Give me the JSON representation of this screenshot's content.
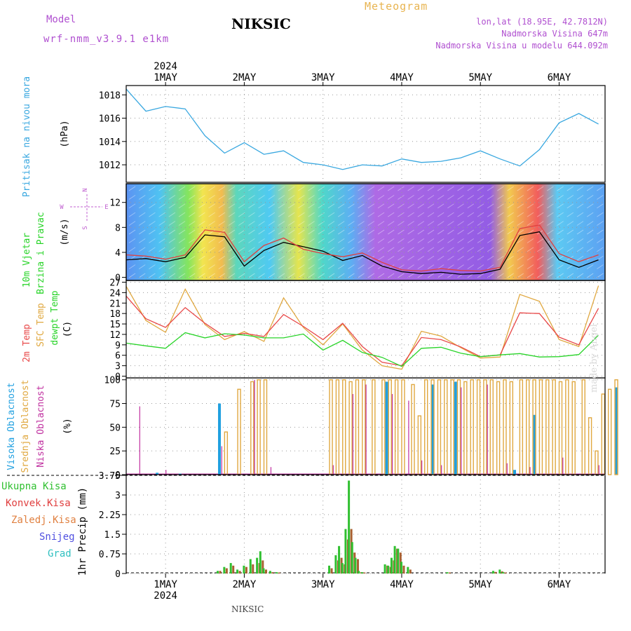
{
  "header": {
    "title": "NIKSIC",
    "meteogram_label": "Meteogram",
    "model_label": "Model",
    "model_name": "wrf-nmm_v3.9.1 e1km",
    "coords": "lon,lat (18.95E, 42.7812N)",
    "elevation": "Nadmorska Visina 647m",
    "model_elevation": "Nadmorska Visina u modelu 644.092m"
  },
  "footer": {
    "station": "NIKSIC",
    "watermark": "made by Angel"
  },
  "colors": {
    "pressure": "#3aa8e0",
    "temp2m": "#e84848",
    "sfc_temp": "#e0a840",
    "dewpoint": "#28d428",
    "cloud_high": "#20a0e0",
    "cloud_mid": "#e0a840",
    "cloud_low": "#c030a0",
    "precip_total": "#30c030",
    "precip_conv": "#e04040",
    "precip_frozen": "#e08040",
    "snow": "#5050e0",
    "hail": "#30c0c0"
  },
  "chart_data": [
    {
      "type": "line",
      "panel": "pressure",
      "ylabel_colored": "Pritisak na nivou mora",
      "ylabel_unit": "(hPa)",
      "yticks": [
        "1012",
        "1014",
        "1016",
        "1018"
      ],
      "ylim": [
        1010.5,
        1018.8
      ],
      "x_hours": [
        0,
        6,
        12,
        18,
        24,
        30,
        36,
        42,
        48,
        54,
        60,
        66,
        72,
        78,
        84,
        90,
        96,
        102,
        108,
        114,
        120,
        126,
        132,
        138,
        144
      ],
      "series": [
        {
          "values": [
            1018.5,
            1016.6,
            1017.0,
            1016.8,
            1014.5,
            1013.0,
            1013.9,
            1012.9,
            1013.2,
            1012.2,
            1012.0,
            1011.6,
            1012.0,
            1011.9,
            1012.5,
            1012.2,
            1012.3,
            1012.6,
            1013.2,
            1012.5,
            1011.9,
            1013.3,
            1015.6,
            1016.4,
            1015.5
          ]
        }
      ],
      "grid": true
    },
    {
      "type": "line",
      "panel": "wind",
      "ylabel_colored_1": "10m Vjetar",
      "ylabel_colored_2": "Brzina i Pravac",
      "ylabel_unit": "(m/s)",
      "compass": {
        "n": "N",
        "s": "S",
        "e": "E",
        "w": "W"
      },
      "yticks": [
        "0",
        "4",
        "8",
        "12"
      ],
      "ylim": [
        -0.5,
        15
      ],
      "x_hours": [
        0,
        6,
        12,
        18,
        24,
        30,
        36,
        42,
        48,
        54,
        60,
        66,
        72,
        78,
        84,
        90,
        96,
        102,
        108,
        114,
        120,
        126,
        132,
        138,
        144
      ],
      "series": [
        {
          "values": [
            2.8,
            3.0,
            2.5,
            3.2,
            6.8,
            6.5,
            1.8,
            4.3,
            5.6,
            4.9,
            4.2,
            2.7,
            3.5,
            1.8,
            0.9,
            0.6,
            0.8,
            0.5,
            0.6,
            1.3,
            6.7,
            7.3,
            2.8,
            1.6,
            2.8
          ]
        },
        {
          "values": [
            3.6,
            3.4,
            2.9,
            3.6,
            7.6,
            7.2,
            2.5,
            5.1,
            6.3,
            4.5,
            3.8,
            3.3,
            3.9,
            2.4,
            1.2,
            1.0,
            1.4,
            1.1,
            1.0,
            1.6,
            7.8,
            8.4,
            3.8,
            2.5,
            3.6
          ]
        }
      ],
      "grid": true
    },
    {
      "type": "line",
      "panel": "temperature",
      "ylabel_colored_1": "2m Temp",
      "ylabel_colored_2": "SFC Temp",
      "ylabel_colored_3": "dewpt Temp",
      "ylabel_unit": "(C)",
      "yticks": [
        "0",
        "3",
        "6",
        "9",
        "12",
        "15",
        "18",
        "21",
        "24",
        "27"
      ],
      "ylim": [
        -0.5,
        27.5
      ],
      "x_hours": [
        0,
        6,
        12,
        18,
        24,
        30,
        36,
        42,
        48,
        54,
        60,
        66,
        72,
        78,
        84,
        90,
        96,
        102,
        108,
        114,
        120,
        126,
        132,
        138,
        144
      ],
      "series": [
        {
          "name": "2m Temp",
          "values": [
            23.0,
            16.5,
            14.0,
            19.7,
            15.2,
            11.4,
            12.3,
            11.4,
            17.7,
            14.3,
            10.5,
            15.2,
            8.5,
            4.0,
            3.0,
            11.1,
            10.5,
            8.4,
            5.6,
            6.1,
            18.2,
            18.0,
            11.2,
            9.0,
            19.5
          ]
        },
        {
          "name": "SFC Temp",
          "values": [
            25.8,
            16.0,
            12.6,
            25.0,
            14.8,
            10.5,
            12.8,
            10.0,
            22.5,
            14.0,
            9.0,
            15.0,
            7.5,
            3.0,
            2.0,
            12.9,
            11.5,
            8.2,
            5.2,
            5.5,
            23.5,
            21.5,
            10.5,
            8.5,
            26.0
          ]
        },
        {
          "name": "dewpt Temp",
          "values": [
            9.5,
            8.7,
            8.0,
            12.5,
            11.0,
            12.2,
            11.8,
            11.0,
            11.0,
            12.1,
            7.5,
            10.3,
            6.8,
            5.4,
            2.8,
            8.0,
            8.3,
            6.6,
            5.6,
            6.1,
            6.5,
            5.5,
            5.6,
            6.2,
            11.8
          ]
        }
      ],
      "grid": true
    },
    {
      "type": "bar",
      "panel": "cloud",
      "ylabel_colored_1": "Visoka Oblacnost",
      "ylabel_colored_2": "Srednja Oblacnost",
      "ylabel_colored_3": "Niska Oblacnost",
      "ylabel_unit": "(%)",
      "yticks": [
        "0",
        "25",
        "50",
        "75",
        "100"
      ],
      "ylim": [
        0,
        102
      ],
      "series": [
        {
          "name": "high",
          "bars": [
            [
              9,
              2
            ],
            [
              16,
              1
            ],
            [
              28,
              75
            ],
            [
              79,
              98
            ],
            [
              93,
              95
            ],
            [
              100,
              98
            ],
            [
              118,
              5
            ],
            [
              124,
              63
            ],
            [
              149,
              92
            ]
          ]
        },
        {
          "name": "mid",
          "bars": [
            [
              30,
              45
            ],
            [
              34,
              90
            ],
            [
              38,
              98
            ],
            [
              40,
              100
            ],
            [
              42,
              100
            ],
            [
              62,
              100
            ],
            [
              64,
              100
            ],
            [
              66,
              100
            ],
            [
              68,
              98
            ],
            [
              70,
              100
            ],
            [
              72,
              100
            ],
            [
              75,
              100
            ],
            [
              78,
              100
            ],
            [
              80,
              100
            ],
            [
              82,
              100
            ],
            [
              84,
              100
            ],
            [
              87,
              95
            ],
            [
              89,
              62
            ],
            [
              91,
              100
            ],
            [
              93,
              100
            ],
            [
              95,
              100
            ],
            [
              97,
              100
            ],
            [
              99,
              100
            ],
            [
              101,
              100
            ],
            [
              103,
              98
            ],
            [
              105,
              100
            ],
            [
              107,
              100
            ],
            [
              109,
              100
            ],
            [
              111,
              100
            ],
            [
              113,
              98
            ],
            [
              115,
              100
            ],
            [
              117,
              98
            ],
            [
              120,
              100
            ],
            [
              122,
              100
            ],
            [
              124,
              100
            ],
            [
              126,
              100
            ],
            [
              128,
              100
            ],
            [
              130,
              100
            ],
            [
              132,
              98
            ],
            [
              134,
              100
            ],
            [
              136,
              98
            ],
            [
              139,
              100
            ],
            [
              141,
              60
            ],
            [
              143,
              25
            ],
            [
              145,
              85
            ],
            [
              147,
              90
            ],
            [
              149,
              100
            ]
          ]
        },
        {
          "name": "low",
          "bars": [
            [
              4,
              72
            ],
            [
              12,
              5
            ],
            [
              29,
              30
            ],
            [
              39,
              100
            ],
            [
              44,
              8
            ],
            [
              63,
              10
            ],
            [
              69,
              85
            ],
            [
              73,
              95
            ],
            [
              81,
              85
            ],
            [
              86,
              78
            ],
            [
              90,
              15
            ],
            [
              96,
              10
            ],
            [
              102,
              92
            ],
            [
              110,
              95
            ],
            [
              116,
              12
            ],
            [
              123,
              8
            ],
            [
              133,
              18
            ],
            [
              144,
              10
            ]
          ]
        }
      ],
      "grid": true
    },
    {
      "type": "bar",
      "panel": "precipitation",
      "legend": [
        "Ukupna Kisa",
        "Konvek.Kisa",
        "Zaledj.Kisa",
        "Snijeg",
        "Grad"
      ],
      "ylabel": "1hr Precip (mm)",
      "yticks": [
        "0",
        "0.75",
        "1.5",
        "2.25",
        "3",
        "3.75"
      ],
      "ylim": [
        0,
        3.75
      ],
      "x_hours": [
        28,
        30,
        32,
        34,
        36,
        38,
        40,
        41,
        42,
        44,
        46,
        62,
        64,
        65,
        66,
        67,
        68,
        69,
        70,
        71,
        72,
        79,
        80,
        81,
        82,
        83,
        84,
        86,
        98,
        112,
        114,
        115
      ],
      "series": [
        {
          "name": "Ukupna Kisa",
          "values": [
            0.1,
            0.25,
            0.4,
            0.15,
            0.3,
            0.55,
            0.6,
            0.85,
            0.2,
            0.1,
            0.05,
            0.3,
            0.7,
            1.05,
            0.4,
            1.7,
            3.55,
            1.2,
            0.6,
            0.1,
            0.05,
            0.35,
            0.3,
            0.6,
            1.05,
            0.95,
            0.45,
            0.25,
            0.05,
            0.1,
            0.15,
            0.05
          ]
        },
        {
          "name": "Konvek.Kisa",
          "values": [
            0.1,
            0.2,
            0.3,
            0.1,
            0.25,
            0.35,
            0.4,
            0.5,
            0.15,
            0.05,
            0.04,
            0.2,
            0.5,
            0.6,
            0.35,
            1.3,
            1.7,
            0.8,
            0.55,
            0.05,
            0.04,
            0.3,
            0.25,
            0.5,
            0.95,
            0.8,
            0.3,
            0.15,
            0.04,
            0.06,
            0.08,
            0.04
          ]
        }
      ],
      "grid": true
    }
  ],
  "x_axis": {
    "year": "2024",
    "days": [
      "1MAY",
      "2MAY",
      "3MAY",
      "4MAY",
      "5MAY",
      "6MAY"
    ],
    "day_hours": [
      12,
      36,
      60,
      84,
      108,
      132
    ],
    "range_hours": [
      0,
      146
    ]
  }
}
